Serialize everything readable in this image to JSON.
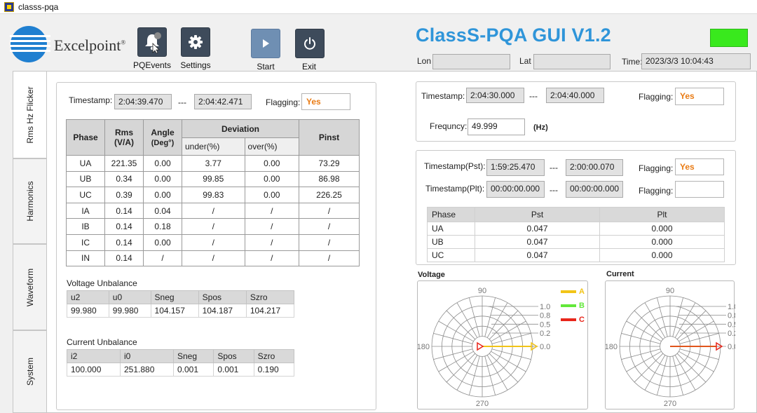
{
  "window": {
    "title": "classs-pqa"
  },
  "brand": {
    "name": "Excelpoint",
    "reg": "®"
  },
  "toolbar": {
    "pqevents_label": "PQEvents",
    "settings_label": "Settings",
    "start_label": "Start",
    "exit_label": "Exit"
  },
  "app_title": "ClassS-PQA GUI V1.2",
  "status": {
    "color": "#39e91d"
  },
  "location": {
    "lon_label": "Lon",
    "lon_value": "",
    "lat_label": "Lat",
    "lat_value": "",
    "time_label": "Time:",
    "time_value": "2023/3/3 10:04:43"
  },
  "tabs": [
    "Rms Hz Flicker",
    "Harmonics",
    "Waveform",
    "System"
  ],
  "rms": {
    "timestamp_label": "Timestamp:",
    "ts_start": "2:04:39.470",
    "sep": "---",
    "ts_end": "2:04:42.471",
    "flag_label": "Flagging:",
    "flag_value": "Yes",
    "headers": {
      "phase": "Phase",
      "rms": "Rms",
      "rms_unit": "(V/A)",
      "angle": "Angle",
      "angle_unit": "(Deg°)",
      "deviation": "Deviation",
      "under": "under(%)",
      "over": "over(%)",
      "pinst": "Pinst"
    },
    "rows": [
      [
        "UA",
        "221.35",
        "0.00",
        "3.77",
        "0.00",
        "73.29"
      ],
      [
        "UB",
        "0.34",
        "0.00",
        "99.85",
        "0.00",
        "86.98"
      ],
      [
        "UC",
        "0.39",
        "0.00",
        "99.83",
        "0.00",
        "226.25"
      ],
      [
        "IA",
        "0.14",
        "0.04",
        "/",
        "/",
        "/"
      ],
      [
        "IB",
        "0.14",
        "0.18",
        "/",
        "/",
        "/"
      ],
      [
        "IC",
        "0.14",
        "0.00",
        "/",
        "/",
        "/"
      ],
      [
        "IN",
        "0.14",
        "/",
        "/",
        "/",
        "/"
      ]
    ]
  },
  "voltage_unbalance": {
    "title": "Voltage Unbalance",
    "headers": [
      "u2",
      "u0",
      "Sneg",
      "Spos",
      "Szro"
    ],
    "values": [
      "99.980",
      "99.980",
      "104.157",
      "104.187",
      "104.217"
    ]
  },
  "current_unbalance": {
    "title": "Current Unbalance",
    "headers": [
      "i2",
      "i0",
      "Sneg",
      "Spos",
      "Szro"
    ],
    "values": [
      "100.000",
      "251.880",
      "0.001",
      "0.001",
      "0.190"
    ]
  },
  "freq": {
    "timestamp_label": "Timestamp:",
    "ts_start": "2:04:30.000",
    "sep": "---",
    "ts_end": "2:04:40.000",
    "flag_label": "Flagging:",
    "flag_value": "Yes",
    "freq_label": "Frequncy:",
    "freq_value": "49.999",
    "freq_unit": "(Hz)"
  },
  "flicker": {
    "pst_label": "Timestamp(Pst):",
    "pst_start": "1:59:25.470",
    "pst_sep": "---",
    "pst_end": "2:00:00.070",
    "pst_flag_label": "Flagging:",
    "pst_flag_value": "Yes",
    "plt_label": "Timestamp(Plt):",
    "plt_start": "00:00:00.000",
    "plt_sep": "---",
    "plt_end": "00:00:00.000",
    "plt_flag_label": "Flagging:",
    "plt_flag_value": "",
    "headers": [
      "Phase",
      "Pst",
      "Plt"
    ],
    "rows": [
      [
        "UA",
        "0.047",
        "0.000"
      ],
      [
        "UB",
        "0.047",
        "0.000"
      ],
      [
        "UC",
        "0.047",
        "0.000"
      ]
    ]
  },
  "voltage_polar": {
    "title": "Voltage",
    "angle_labels": [
      "90",
      "180",
      "270"
    ],
    "radial_labels": [
      "1.0",
      "0.8",
      "0.5",
      "0.2",
      "0.0"
    ],
    "legend": [
      {
        "name": "A",
        "color": "#f2c417"
      },
      {
        "name": "B",
        "color": "#62e83a"
      },
      {
        "name": "C",
        "color": "#e8261b"
      }
    ]
  },
  "current_polar": {
    "title": "Current",
    "angle_labels": [
      "90",
      "180",
      "270"
    ],
    "radial_labels": [
      "1.0",
      "0.8",
      "0.5",
      "0.2",
      "0.0"
    ]
  }
}
